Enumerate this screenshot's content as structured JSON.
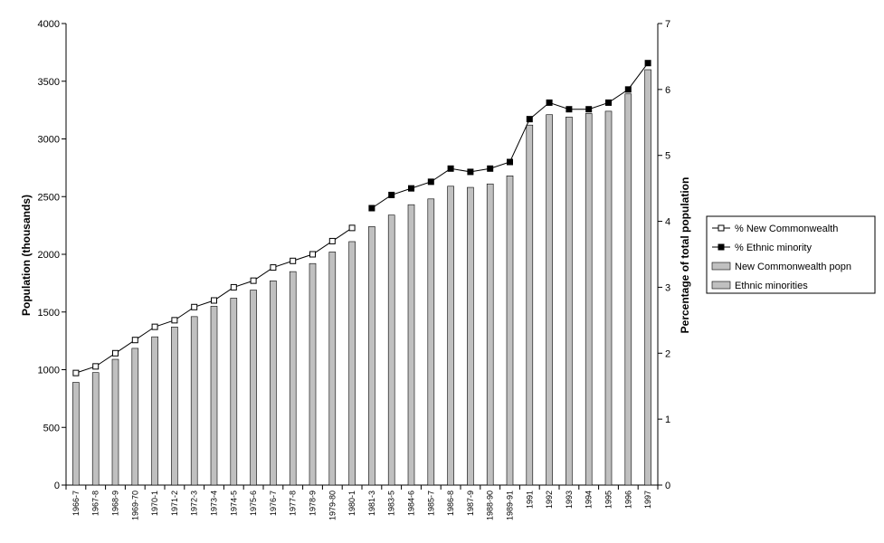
{
  "chart_data": {
    "type": "bar",
    "title": "",
    "ylabel": "Population (thousands)",
    "y2label": "Percentage of total population",
    "ylim": [
      0,
      4000
    ],
    "y2lim": [
      0,
      7
    ],
    "yticks": [
      0,
      500,
      1000,
      1500,
      2000,
      2500,
      3000,
      3500,
      4000
    ],
    "y2ticks": [
      0,
      1,
      2,
      3,
      4,
      5,
      6,
      7
    ],
    "grid": false,
    "legend_position": "right",
    "categories": [
      "1966-7",
      "1967-8",
      "1968-9",
      "1969-70",
      "1970-1",
      "1971-2",
      "1972-3",
      "1973-4",
      "1974-5",
      "1975-6",
      "1976-7",
      "1977-8",
      "1978-9",
      "1979-80",
      "1980-1",
      "1981-3",
      "1983-5",
      "1984-6",
      "1985-7",
      "1986-8",
      "1987-9",
      "1988-90",
      "1989-91",
      "1991",
      "1992",
      "1993",
      "1994",
      "1995",
      "1996",
      "1997"
    ],
    "series": [
      {
        "name": "% New Commonwealth",
        "kind": "line",
        "axis": "right",
        "marker": "open-square",
        "values": [
          1.7,
          1.8,
          2.0,
          2.2,
          2.4,
          2.5,
          2.7,
          2.8,
          3.0,
          3.1,
          3.3,
          3.4,
          3.5,
          3.7,
          3.9,
          null,
          null,
          null,
          null,
          null,
          null,
          null,
          null,
          null,
          null,
          null,
          null,
          null,
          null,
          null
        ]
      },
      {
        "name": "% Ethnic minority",
        "kind": "line",
        "axis": "right",
        "marker": "filled-square",
        "values": [
          null,
          null,
          null,
          null,
          null,
          null,
          null,
          null,
          null,
          null,
          null,
          null,
          null,
          null,
          null,
          4.2,
          4.4,
          4.5,
          4.6,
          4.8,
          4.75,
          4.8,
          4.9,
          5.55,
          5.8,
          5.7,
          5.7,
          5.8,
          6.0,
          6.4
        ]
      },
      {
        "name": "New Commonwealth popn",
        "kind": "bar",
        "axis": "left",
        "values": [
          890,
          975,
          1090,
          1185,
          1285,
          1370,
          1460,
          1550,
          1620,
          1690,
          1770,
          1850,
          1920,
          2020,
          2110,
          null,
          null,
          null,
          null,
          null,
          null,
          null,
          null,
          null,
          null,
          null,
          null,
          null,
          null,
          null
        ]
      },
      {
        "name": "Ethnic minorities",
        "kind": "bar",
        "axis": "left",
        "values": [
          null,
          null,
          null,
          null,
          null,
          null,
          null,
          null,
          null,
          null,
          null,
          null,
          null,
          null,
          null,
          2240,
          2340,
          2430,
          2480,
          2590,
          2580,
          2610,
          2680,
          3120,
          3210,
          3190,
          3220,
          3240,
          3390,
          3600
        ]
      }
    ],
    "colors": {
      "bar_fill": "#c0c0c0",
      "bar_edge": "#000000",
      "line": "#000000",
      "open_marker_fill": "#ffffff",
      "filled_marker_fill": "#000000",
      "background": "#ffffff"
    }
  }
}
